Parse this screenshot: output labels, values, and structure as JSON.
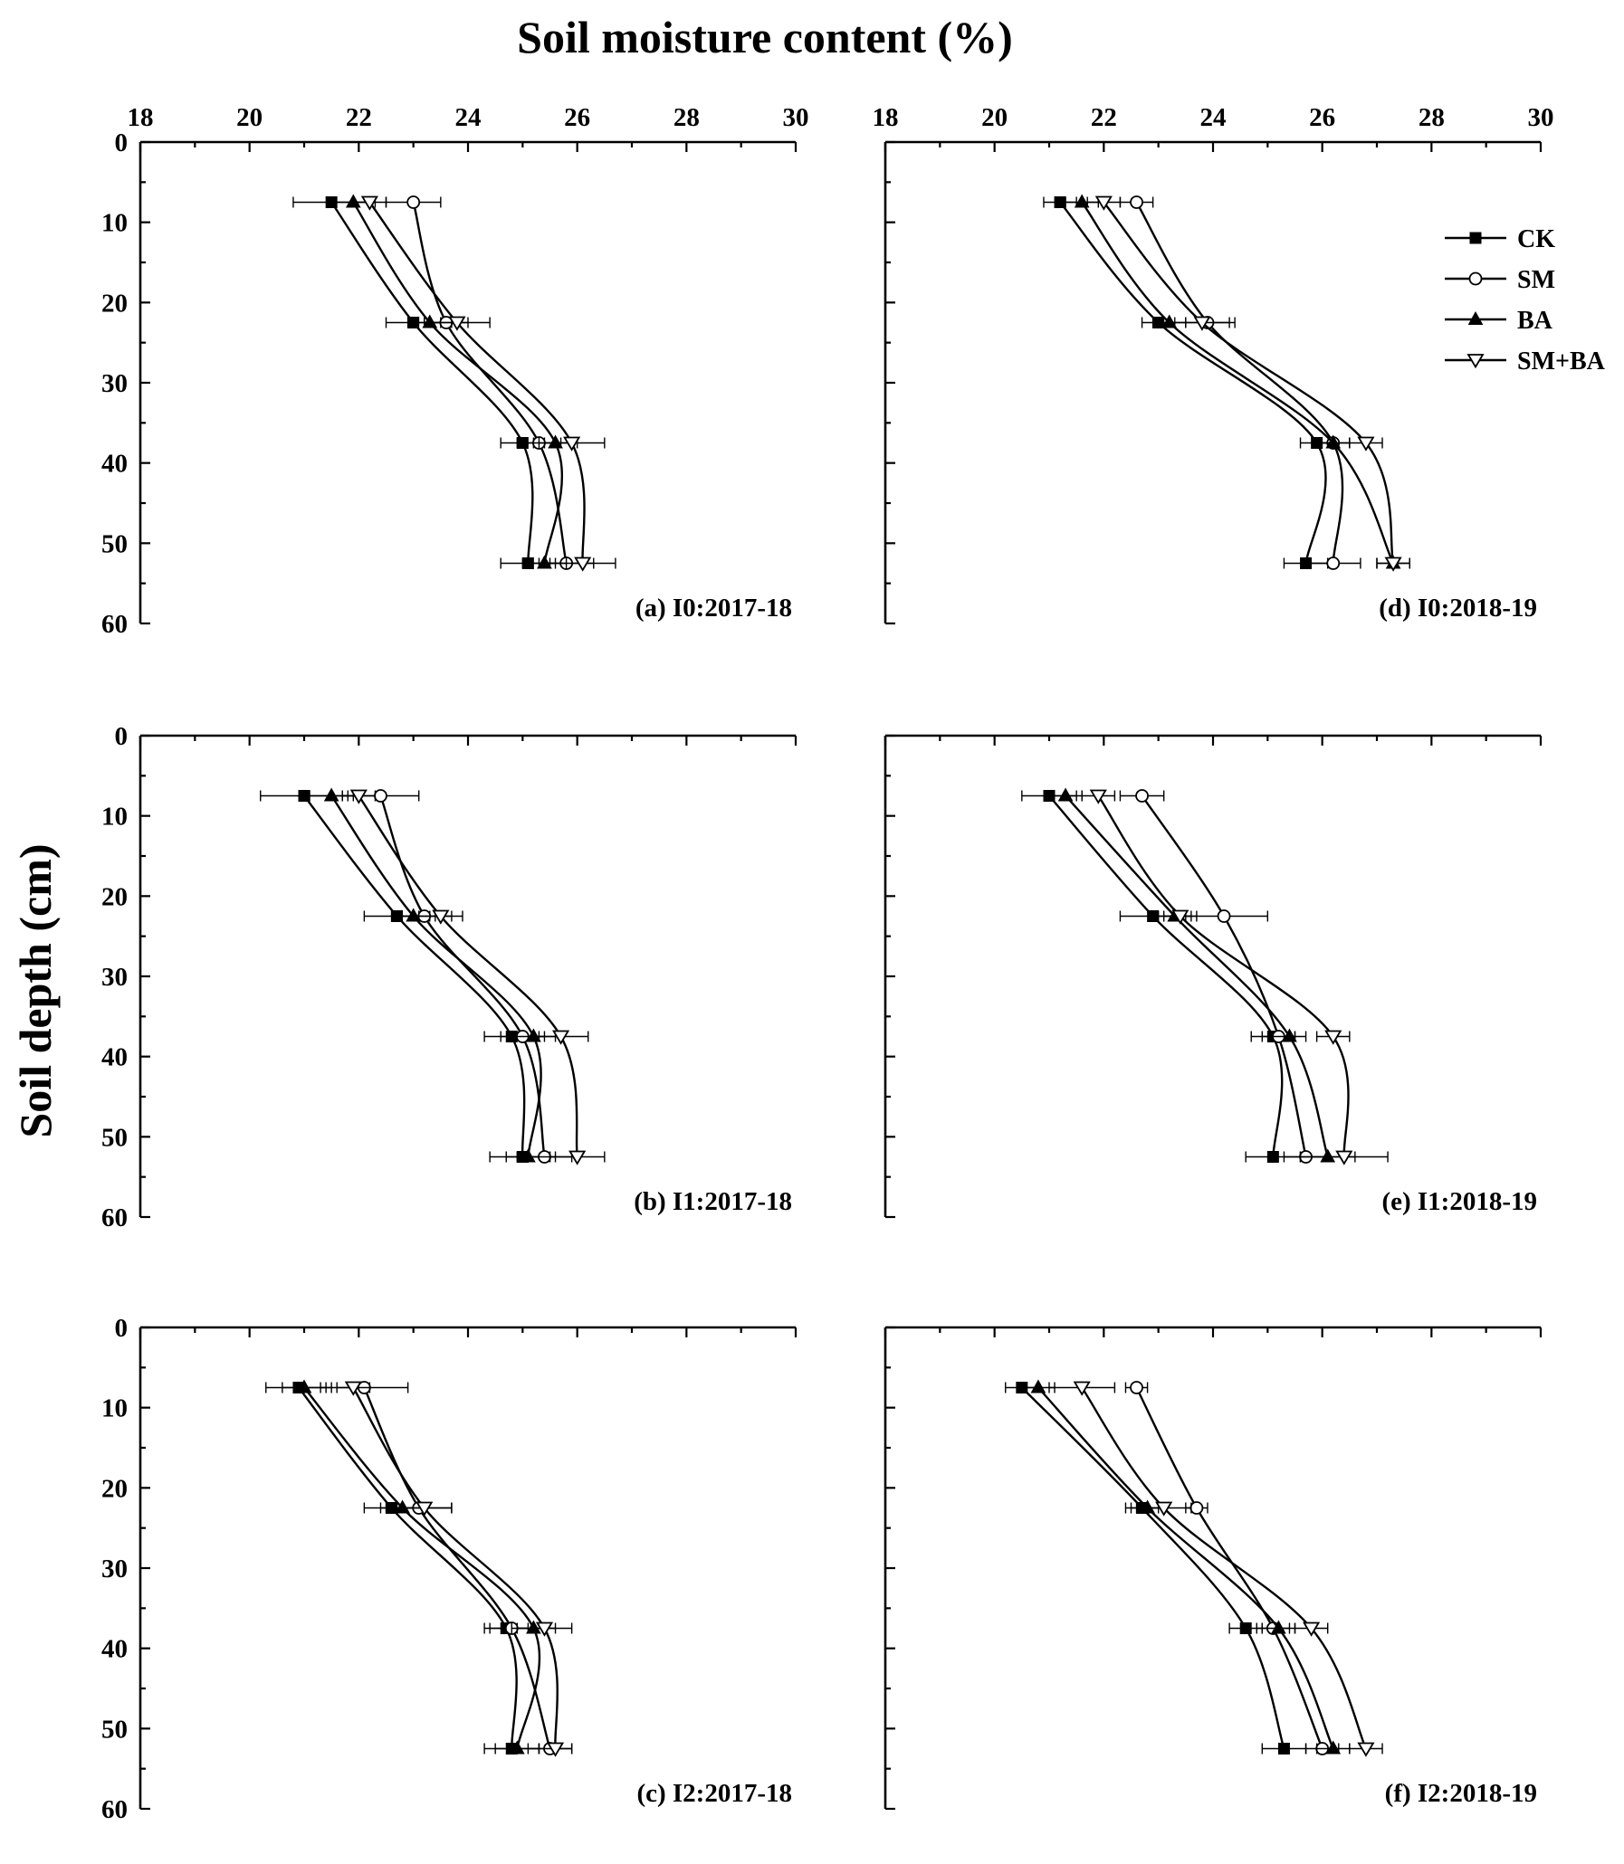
{
  "chart_data": {
    "type": "line",
    "title": "Soil moisture content (%)",
    "xlabel": "Soil moisture content (%)",
    "ylabel": "Soil depth (cm)",
    "xlim": [
      18,
      30
    ],
    "ylim": [
      0,
      60
    ],
    "xticks": [
      18,
      20,
      22,
      24,
      26,
      28,
      30
    ],
    "yticks": [
      0,
      10,
      20,
      30,
      40,
      50,
      60
    ],
    "depths": [
      7.5,
      22.5,
      37.5,
      52.5
    ],
    "legend": {
      "location": "top-right of panel (d)",
      "entries": [
        {
          "name": "CK",
          "marker": "filled-square"
        },
        {
          "name": "SM",
          "marker": "open-circle"
        },
        {
          "name": "BA",
          "marker": "filled-triangle-up"
        },
        {
          "name": "SM+BA",
          "marker": "open-triangle-down"
        }
      ]
    },
    "panels": [
      {
        "label": "(a) I0:2017-18",
        "series": [
          {
            "name": "CK",
            "values": [
              21.5,
              23.0,
              25.0,
              25.1
            ],
            "errors": [
              0.7,
              0.5,
              0.4,
              0.5
            ]
          },
          {
            "name": "SM",
            "values": [
              23.0,
              23.6,
              25.3,
              25.8
            ],
            "errors": [
              0.5,
              0.4,
              0.4,
              0.5
            ]
          },
          {
            "name": "BA",
            "values": [
              21.9,
              23.3,
              25.6,
              25.4
            ],
            "errors": [
              0.4,
              0.4,
              0.4,
              0.4
            ]
          },
          {
            "name": "SM+BA",
            "values": [
              22.2,
              23.8,
              25.9,
              26.1
            ],
            "errors": [
              0.3,
              0.6,
              0.6,
              0.6
            ]
          }
        ]
      },
      {
        "label": "(b) I1:2017-18",
        "series": [
          {
            "name": "CK",
            "values": [
              21.0,
              22.7,
              24.8,
              25.0
            ],
            "errors": [
              0.8,
              0.6,
              0.5,
              0.6
            ]
          },
          {
            "name": "SM",
            "values": [
              22.4,
              23.2,
              25.0,
              25.4
            ],
            "errors": [
              0.7,
              0.5,
              0.4,
              0.5
            ]
          },
          {
            "name": "BA",
            "values": [
              21.5,
              23.0,
              25.2,
              25.1
            ],
            "errors": [
              0.4,
              0.4,
              0.4,
              0.4
            ]
          },
          {
            "name": "SM+BA",
            "values": [
              22.0,
              23.5,
              25.7,
              26.0
            ],
            "errors": [
              0.3,
              0.4,
              0.5,
              0.5
            ]
          }
        ]
      },
      {
        "label": "(c) I2:2017-18",
        "series": [
          {
            "name": "CK",
            "values": [
              20.9,
              22.6,
              24.7,
              24.8
            ],
            "errors": [
              0.6,
              0.5,
              0.4,
              0.5
            ]
          },
          {
            "name": "SM",
            "values": [
              22.1,
              23.1,
              24.8,
              25.5
            ],
            "errors": [
              0.8,
              0.6,
              0.4,
              0.4
            ]
          },
          {
            "name": "BA",
            "values": [
              21.0,
              22.8,
              25.2,
              24.9
            ],
            "errors": [
              0.4,
              0.4,
              0.4,
              0.4
            ]
          },
          {
            "name": "SM+BA",
            "values": [
              21.9,
              23.2,
              25.4,
              25.6
            ],
            "errors": [
              0.3,
              0.5,
              0.5,
              0.3
            ]
          }
        ]
      },
      {
        "label": "(d) I0:2018-19",
        "series": [
          {
            "name": "CK",
            "values": [
              21.2,
              23.0,
              25.9,
              25.7
            ],
            "errors": [
              0.3,
              0.3,
              0.3,
              0.4
            ]
          },
          {
            "name": "SM",
            "values": [
              22.6,
              23.9,
              26.2,
              26.2
            ],
            "errors": [
              0.3,
              0.4,
              0.3,
              0.5
            ]
          },
          {
            "name": "BA",
            "values": [
              21.6,
              23.2,
              26.2,
              27.3
            ],
            "errors": [
              0.3,
              0.3,
              0.3,
              0.3
            ]
          },
          {
            "name": "SM+BA",
            "values": [
              22.0,
              23.8,
              26.8,
              27.3
            ],
            "errors": [
              0.3,
              0.6,
              0.3,
              0.3
            ]
          }
        ]
      },
      {
        "label": "(e) I1:2018-19",
        "series": [
          {
            "name": "CK",
            "values": [
              21.0,
              22.9,
              25.1,
              25.1
            ],
            "errors": [
              0.5,
              0.6,
              0.4,
              0.5
            ]
          },
          {
            "name": "SM",
            "values": [
              22.7,
              24.2,
              25.2,
              25.7
            ],
            "errors": [
              0.4,
              0.8,
              0.3,
              0.4
            ]
          },
          {
            "name": "BA",
            "values": [
              21.3,
              23.3,
              25.4,
              26.1
            ],
            "errors": [
              0.3,
              0.3,
              0.3,
              0.5
            ]
          },
          {
            "name": "SM+BA",
            "values": [
              21.9,
              23.4,
              26.2,
              26.4
            ],
            "errors": [
              0.3,
              0.3,
              0.3,
              0.8
            ]
          }
        ]
      },
      {
        "label": "(f) I2:2018-19",
        "series": [
          {
            "name": "CK",
            "values": [
              20.5,
              22.7,
              24.6,
              25.3
            ],
            "errors": [
              0.3,
              0.3,
              0.3,
              0.4
            ]
          },
          {
            "name": "SM",
            "values": [
              22.6,
              23.7,
              25.1,
              26.0
            ],
            "errors": [
              0.2,
              0.2,
              0.3,
              0.3
            ]
          },
          {
            "name": "BA",
            "values": [
              20.8,
              22.8,
              25.2,
              26.2
            ],
            "errors": [
              0.3,
              0.3,
              0.3,
              0.3
            ]
          },
          {
            "name": "SM+BA",
            "values": [
              21.6,
              23.1,
              25.8,
              26.8
            ],
            "errors": [
              0.6,
              0.5,
              0.3,
              0.3
            ]
          }
        ]
      }
    ]
  }
}
